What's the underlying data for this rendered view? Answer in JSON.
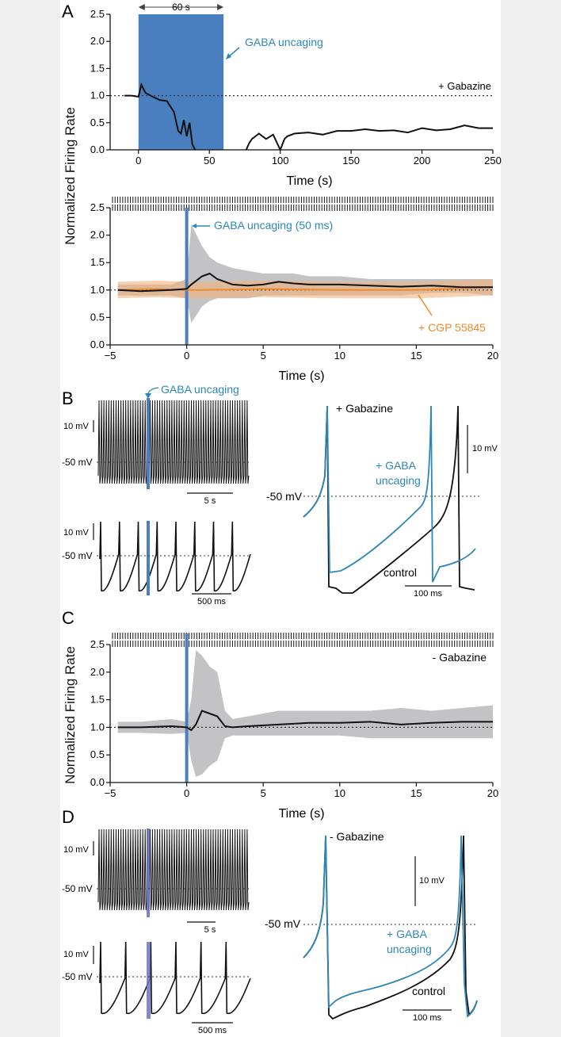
{
  "figure": {
    "y_axis_label_shared": "Normalized Firing Rate",
    "colors": {
      "uncaging_blue": "#4a7fbf",
      "trace_blue": "#2c87b8",
      "orange": "#f08a2c",
      "gray_band": "#b9b9bb",
      "black": "#111111"
    }
  },
  "panel_A": {
    "label": "A",
    "top_chart": {
      "type": "line",
      "xlabel": "Time (s)",
      "xlim": [
        -20,
        250
      ],
      "ylim": [
        0,
        2.5
      ],
      "x_ticks": [
        0,
        50,
        100,
        150,
        200,
        250
      ],
      "y_ticks": [
        0.0,
        0.5,
        1.0,
        1.5,
        2.0,
        2.5
      ],
      "x_tick_labels": [
        "0",
        "50",
        "100",
        "150",
        "200",
        "250"
      ],
      "y_tick_labels": [
        "0.0",
        "0.5",
        "1.0",
        "1.5",
        "2.0",
        "2.5"
      ],
      "reference_line_y": 1.0,
      "uncaging_window": [
        0,
        60
      ],
      "window_label": "60 s",
      "uncaging_label": "GABA uncaging",
      "condition_label": "+ Gabazine",
      "series_x": [
        -10,
        -5,
        0,
        2,
        5,
        10,
        15,
        20,
        25,
        28,
        30,
        32,
        34,
        36,
        38,
        40,
        76,
        78,
        80,
        85,
        90,
        95,
        100,
        103,
        105,
        110,
        120,
        130,
        140,
        150,
        160,
        170,
        180,
        190,
        200,
        210,
        220,
        230,
        240,
        250
      ],
      "series_y": [
        1.0,
        1.0,
        0.98,
        1.2,
        1.05,
        0.98,
        0.92,
        0.9,
        0.7,
        0.35,
        0.3,
        0.55,
        0.25,
        0.5,
        0.1,
        0.0,
        0.0,
        0.12,
        0.2,
        0.3,
        0.2,
        0.28,
        0.0,
        0.2,
        0.25,
        0.3,
        0.32,
        0.28,
        0.35,
        0.35,
        0.38,
        0.35,
        0.36,
        0.32,
        0.4,
        0.36,
        0.38,
        0.45,
        0.4,
        0.4
      ]
    },
    "bottom_chart": {
      "type": "line",
      "xlabel": "Time (s)",
      "xlim": [
        -5,
        20
      ],
      "ylim": [
        0,
        2.5
      ],
      "x_ticks": [
        -5,
        0,
        5,
        10,
        15,
        20
      ],
      "x_tick_labels": [
        "−5",
        "0",
        "5",
        "10",
        "15",
        "20"
      ],
      "y_ticks": [
        0.0,
        0.5,
        1.0,
        1.5,
        2.0,
        2.5
      ],
      "y_tick_labels": [
        "0.0",
        "0.5",
        "1.0",
        "1.5",
        "2.0",
        "2.5"
      ],
      "reference_line_y": 1.0,
      "uncaging_time": 0,
      "uncaging_label": "GABA uncaging (50 ms)",
      "drug_label": "+ CGP 55845",
      "series": [
        {
          "name": "control",
          "x": [
            -4.5,
            -3,
            -1,
            0,
            0.3,
            1,
            1.5,
            2,
            3,
            4,
            5,
            6,
            7,
            8,
            10,
            12,
            14,
            16,
            18,
            20
          ],
          "y": [
            1.0,
            0.98,
            1.0,
            1.02,
            1.1,
            1.25,
            1.3,
            1.2,
            1.1,
            1.08,
            1.1,
            1.15,
            1.12,
            1.1,
            1.1,
            1.08,
            1.06,
            1.08,
            1.05,
            1.05
          ]
        },
        {
          "name": "+ CGP 55845",
          "x": [
            -4.5,
            -2,
            0,
            1,
            5,
            10,
            15,
            20
          ],
          "y": [
            1.0,
            1.02,
            1.0,
            1.0,
            1.02,
            1.0,
            1.0,
            1.05
          ]
        }
      ],
      "sem_upper": [
        1.1,
        1.1,
        1.1,
        1.2,
        2.2,
        1.8,
        1.6,
        1.5,
        1.4,
        1.35,
        1.3,
        1.3,
        1.3,
        1.25,
        1.25,
        1.2,
        1.2,
        1.2,
        1.2,
        1.2
      ],
      "sem_lower": [
        0.9,
        0.9,
        0.9,
        0.85,
        0.4,
        0.7,
        0.8,
        0.85,
        0.85,
        0.85,
        0.9,
        0.9,
        0.9,
        0.9,
        0.9,
        0.9,
        0.9,
        0.95,
        0.95,
        0.9
      ]
    }
  },
  "panel_B": {
    "label": "B",
    "uncaging_label": "GABA uncaging",
    "left_top_scale_v": "10 mV",
    "left_top_level": "-50 mV",
    "left_top_scale_t": "5 s",
    "left_bottom_scale_v": "10 mV",
    "left_bottom_level": "-50 mV",
    "left_bottom_scale_t": "500 ms",
    "right_condition": "+ Gabazine",
    "right_level": "-50 mV",
    "right_scale_v": "10 mV",
    "right_scale_t": "100 ms",
    "right_gaba_label_1": "+ GABA",
    "right_gaba_label_2": "uncaging",
    "right_control_label": "control"
  },
  "panel_C": {
    "label": "C",
    "chart": {
      "type": "line",
      "xlabel": "Time (s)",
      "xlim": [
        -5,
        20
      ],
      "ylim": [
        0,
        2.5
      ],
      "x_ticks": [
        -5,
        0,
        5,
        10,
        15,
        20
      ],
      "x_tick_labels": [
        "−5",
        "0",
        "5",
        "10",
        "15",
        "20"
      ],
      "y_ticks": [
        0.0,
        0.5,
        1.0,
        1.5,
        2.0,
        2.5
      ],
      "y_tick_labels": [
        "0.0",
        "0.5",
        "1.0",
        "1.5",
        "2.0",
        "2.5"
      ],
      "reference_line_y": 1.0,
      "uncaging_time": 0,
      "condition_label": "- Gabazine",
      "x": [
        -4.5,
        -3,
        -1,
        0,
        0.3,
        0.6,
        1,
        1.5,
        2,
        2.5,
        3,
        4,
        6,
        8,
        10,
        12,
        14,
        16,
        18,
        20
      ],
      "y": [
        1.0,
        1.0,
        1.02,
        1.0,
        0.95,
        1.05,
        1.3,
        1.25,
        1.2,
        1.02,
        1.0,
        1.02,
        1.05,
        1.08,
        1.08,
        1.1,
        1.05,
        1.08,
        1.1,
        1.1
      ],
      "sem_upper": [
        1.1,
        1.1,
        1.15,
        1.1,
        1.5,
        2.4,
        2.3,
        2.1,
        2.0,
        1.3,
        1.15,
        1.2,
        1.3,
        1.3,
        1.3,
        1.3,
        1.35,
        1.3,
        1.35,
        1.4
      ],
      "sem_lower": [
        0.9,
        0.9,
        0.88,
        0.9,
        0.4,
        0.1,
        0.15,
        0.3,
        0.4,
        0.8,
        0.85,
        0.85,
        0.85,
        0.85,
        0.85,
        0.8,
        0.8,
        0.8,
        0.8,
        0.8
      ]
    }
  },
  "panel_D": {
    "label": "D",
    "left_top_scale_v": "10 mV",
    "left_top_level": "-50 mV",
    "left_top_scale_t": "5 s",
    "left_bottom_scale_v": "10 mV",
    "left_bottom_level": "-50 mV",
    "left_bottom_scale_t": "500 ms",
    "right_condition": "- Gabazine",
    "right_level": "-50 mV",
    "right_scale_v": "10 mV",
    "right_scale_t": "100 ms",
    "right_gaba_label_1": "+ GABA",
    "right_gaba_label_2": "uncaging",
    "right_control_label": "control"
  }
}
